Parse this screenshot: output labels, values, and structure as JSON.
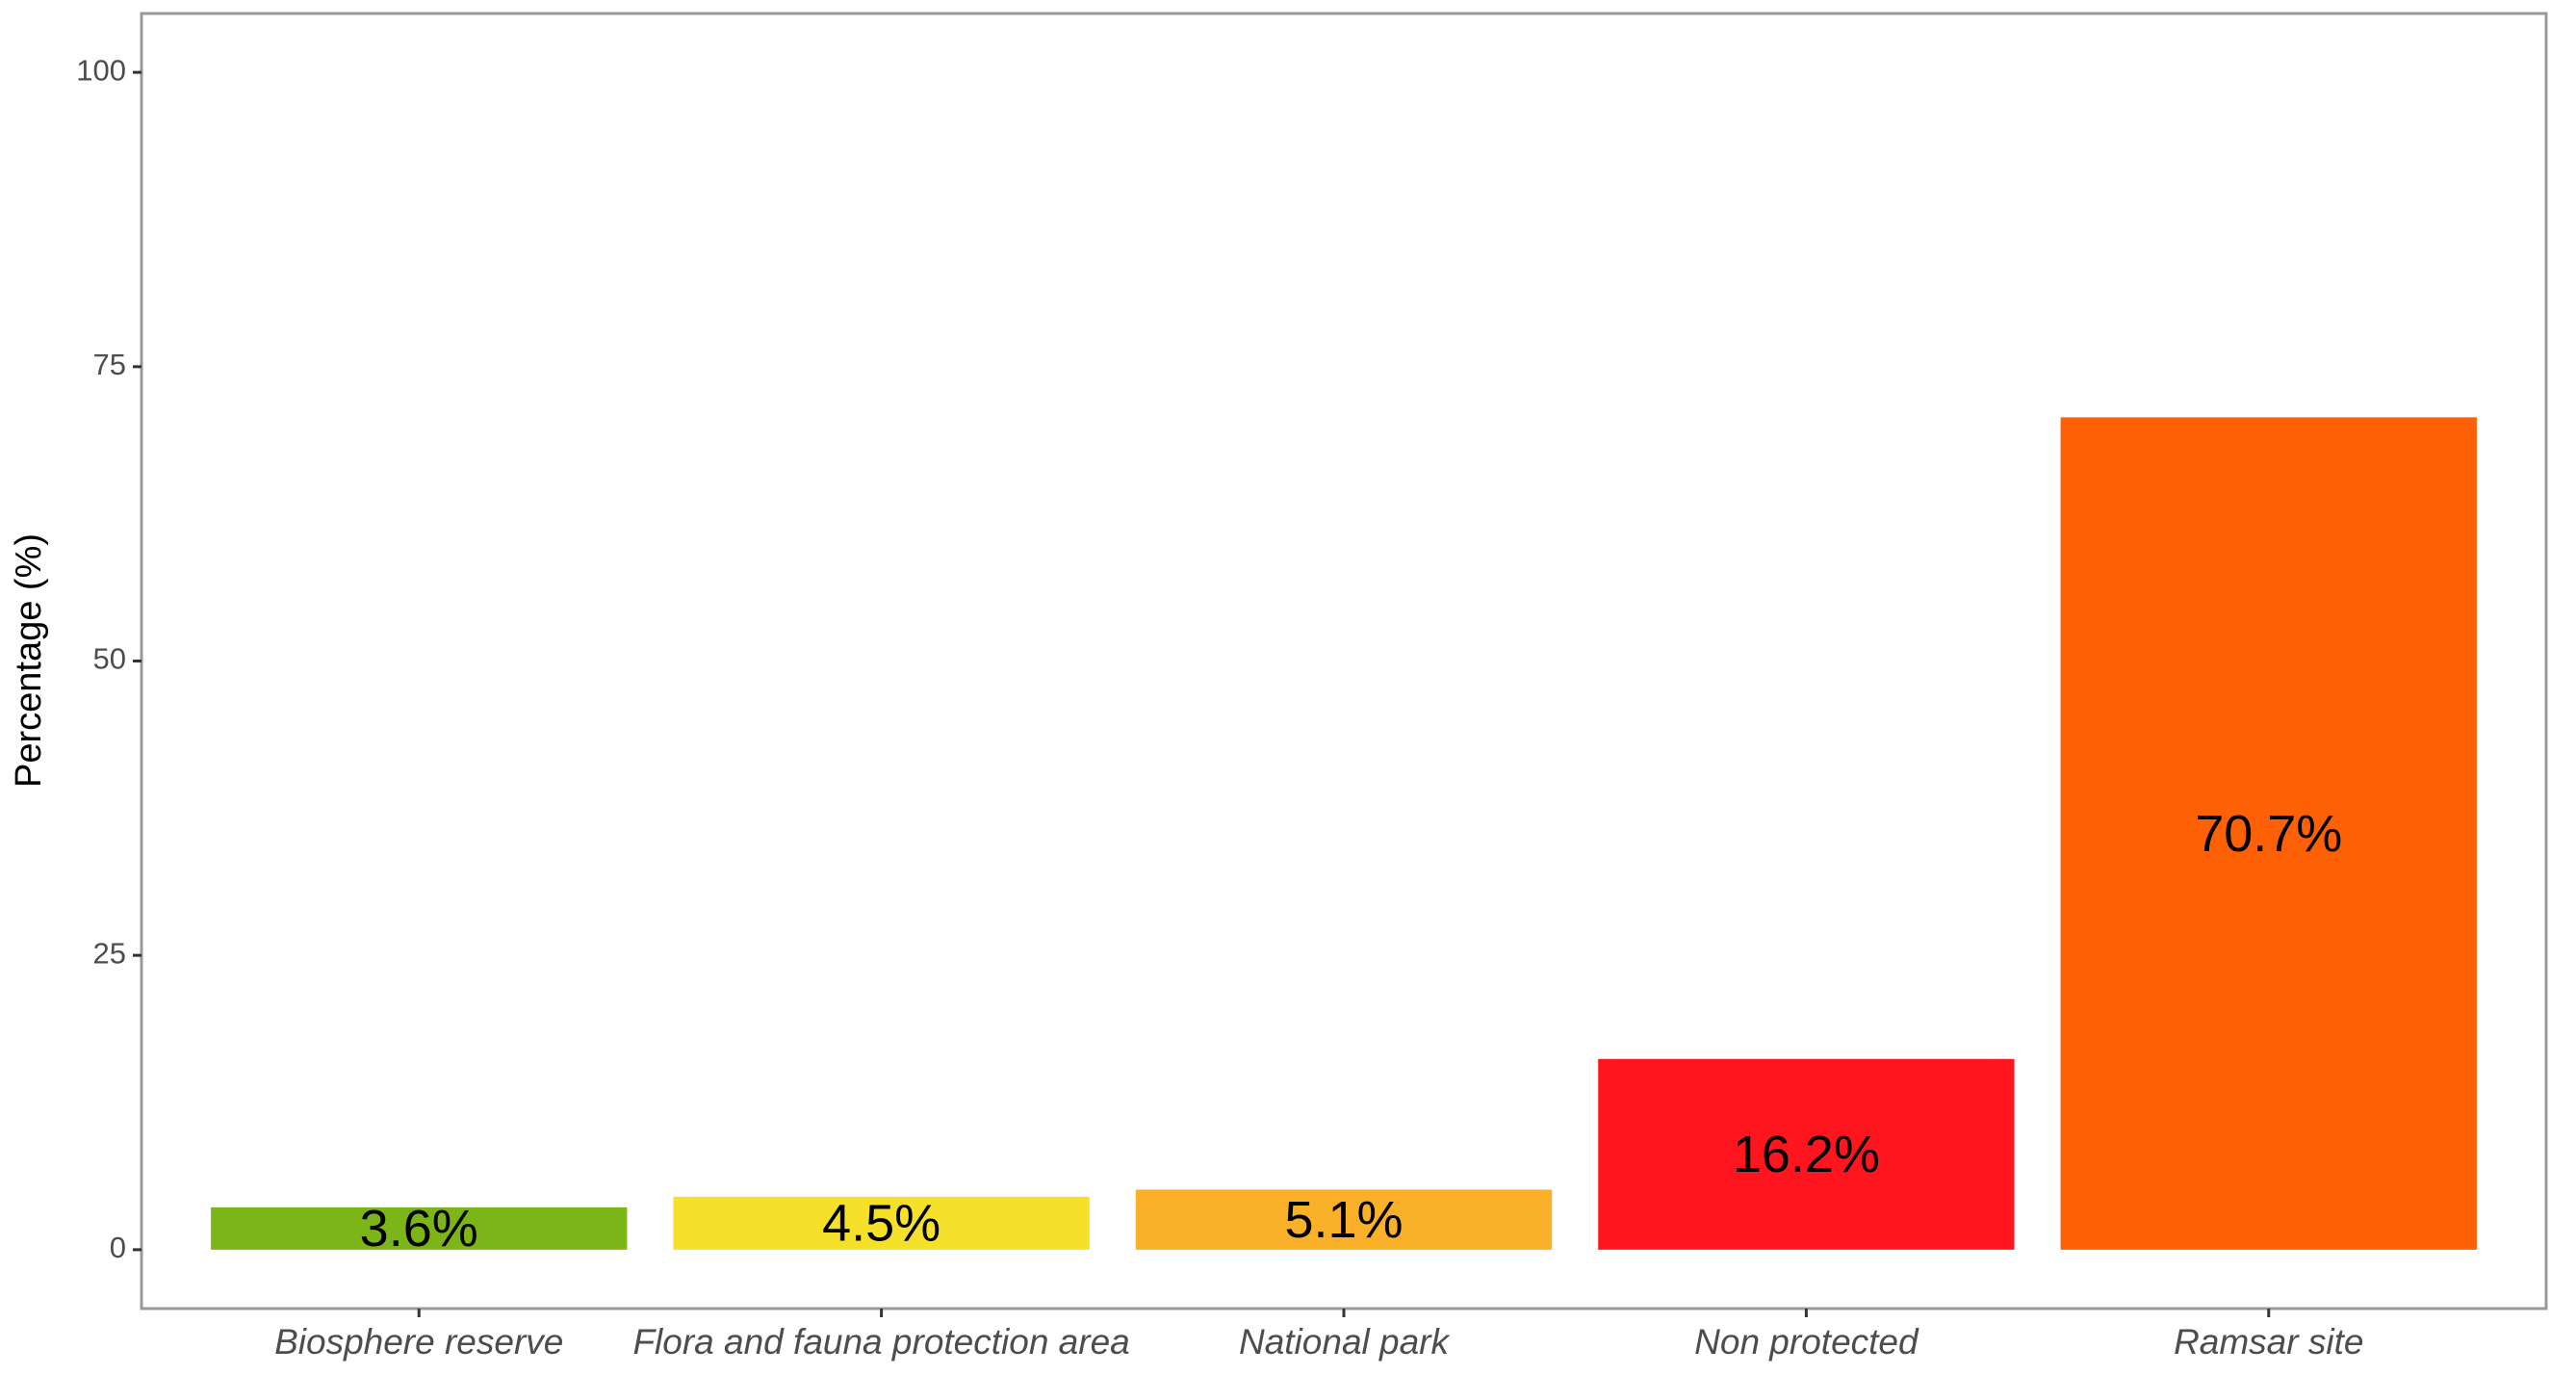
{
  "chart_data": {
    "type": "bar",
    "y_label": "Percentage (%)",
    "categories": [
      "Biosphere reserve",
      "Flora and fauna protection area",
      "National park",
      "Non protected",
      "Ramsar site"
    ],
    "values": [
      3.6,
      4.5,
      5.1,
      16.2,
      70.7
    ],
    "value_labels": [
      "3.6%",
      "4.5%",
      "5.1%",
      "16.2%",
      "70.7%"
    ],
    "colors": [
      "#7cb518",
      "#f5e12a",
      "#fbb02a",
      "#fe151d",
      "#fe6105"
    ],
    "ylim": [
      -5,
      105
    ],
    "yticks": [
      0,
      25,
      50,
      75,
      100
    ],
    "grid": false
  }
}
